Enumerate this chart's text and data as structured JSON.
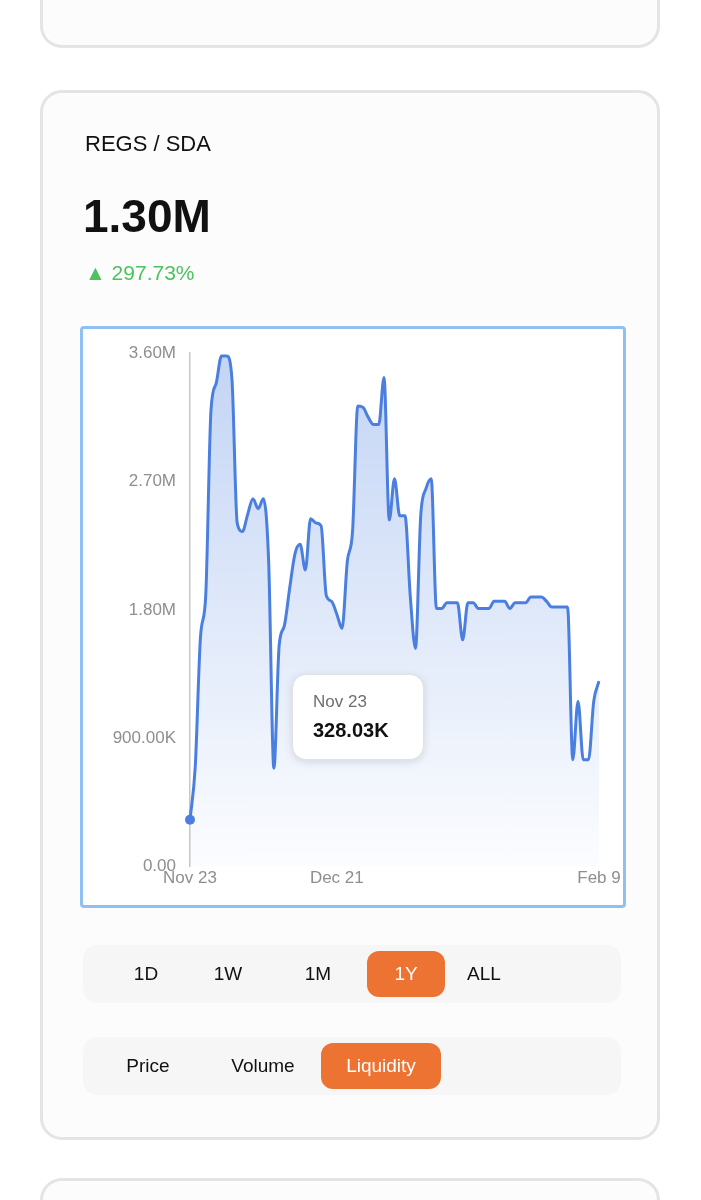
{
  "chart_data": {
    "type": "area",
    "title": "REGS / SDA",
    "subtitle": "1.30M",
    "categories": [
      "Nov 23",
      null,
      null,
      null,
      null,
      null,
      null,
      null,
      null,
      null,
      null,
      null,
      null,
      null,
      null,
      null,
      null,
      null,
      null,
      null,
      null,
      null,
      null,
      null,
      null,
      null,
      null,
      null,
      "Dec 21",
      null,
      null,
      null,
      null,
      null,
      null,
      null,
      null,
      null,
      null,
      null,
      null,
      null,
      null,
      null,
      null,
      null,
      null,
      null,
      null,
      null,
      null,
      null,
      null,
      null,
      null,
      null,
      null,
      null,
      null,
      null,
      null,
      null,
      null,
      null,
      null,
      null,
      null,
      null,
      null,
      null,
      null,
      null,
      null,
      null,
      null,
      null,
      null,
      null,
      "Feb 9"
    ],
    "series": [
      {
        "color": "#4a7fe0",
        "values": [
          328030,
          700000,
          1610000,
          1900000,
          3200000,
          3390000,
          3580000,
          3580000,
          3420000,
          2410000,
          2350000,
          2470000,
          2580000,
          2510000,
          2580000,
          2140000,
          690000,
          1550000,
          1690000,
          1950000,
          2190000,
          2260000,
          2080000,
          2440000,
          2410000,
          2390000,
          1900000,
          1860000,
          1770000,
          1670000,
          2140000,
          2350000,
          3230000,
          3220000,
          3150000,
          3100000,
          3100000,
          3430000,
          2430000,
          2720000,
          2460000,
          2460000,
          1900000,
          1530000,
          2460000,
          2650000,
          2720000,
          1810000,
          1810000,
          1850000,
          1850000,
          1850000,
          1590000,
          1850000,
          1850000,
          1810000,
          1810000,
          1810000,
          1860000,
          1860000,
          1860000,
          1810000,
          1850000,
          1850000,
          1850000,
          1890000,
          1890000,
          1890000,
          1860000,
          1820000,
          1820000,
          1820000,
          1820000,
          750000,
          1160000,
          750000,
          750000,
          1160000,
          1300000
        ]
      }
    ],
    "ylim": [
      0,
      3600000
    ],
    "yticks": [
      {
        "value": 0,
        "label": "0.00"
      },
      {
        "value": 900000,
        "label": "900.00K"
      },
      {
        "value": 1800000,
        "label": "1.80M"
      },
      {
        "value": 2700000,
        "label": "2.70M"
      },
      {
        "value": 3600000,
        "label": "3.60M"
      }
    ],
    "grid": false,
    "legend": false,
    "annotations": [
      "▲ 297.73%",
      "Nov 23\n328.03K",
      "1D",
      "1W",
      "1M",
      "1Y",
      "ALL",
      "Price",
      "Volume",
      "Liquidity"
    ]
  }
}
